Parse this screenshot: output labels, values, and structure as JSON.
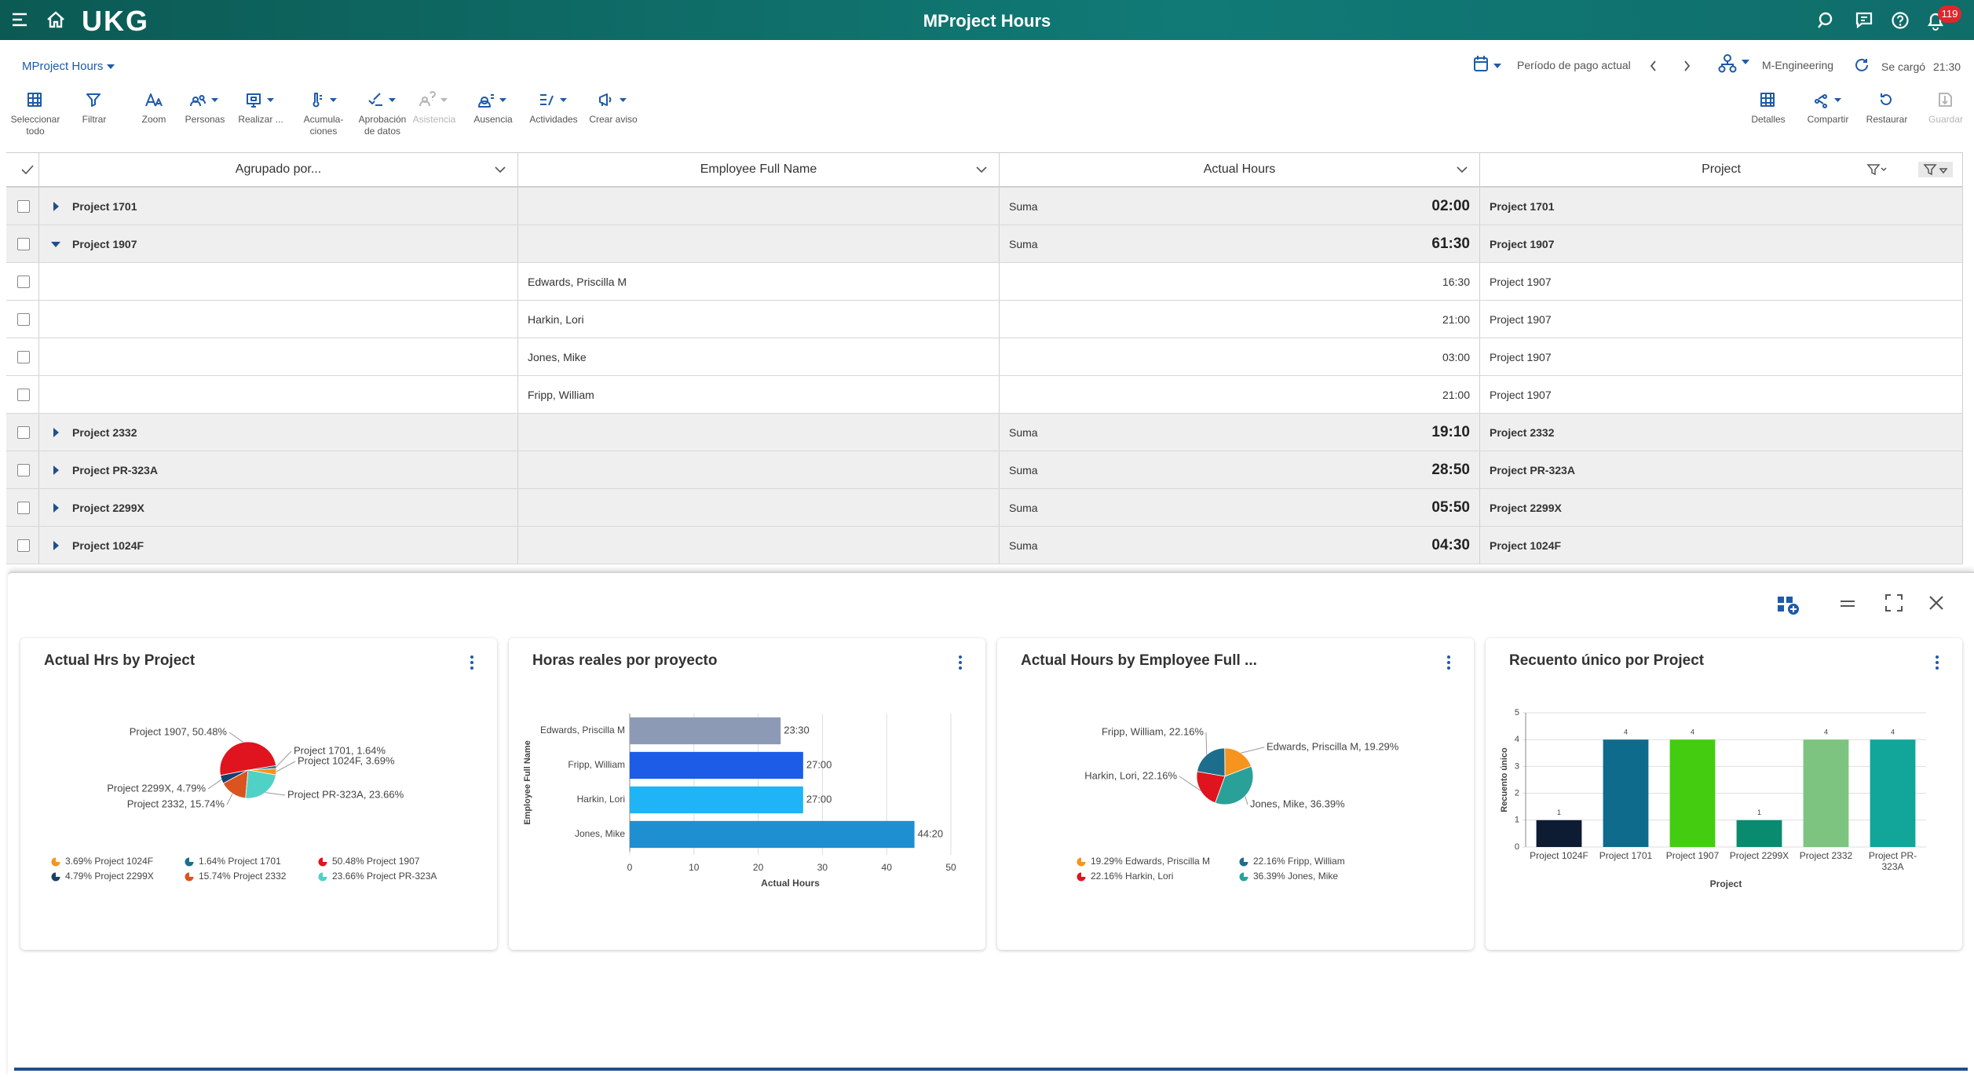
{
  "header": {
    "logo": "UKG",
    "title": "MProject Hours",
    "notification_count": "119"
  },
  "toolbar": {
    "view": "MProject Hours",
    "period": "Período de pago actual",
    "location": "M-Engineering",
    "loaded_label": "Se cargó",
    "loaded_time": "21:30",
    "actions": [
      {
        "label": "Seleccionar todo",
        "disabled": false
      },
      {
        "label": "Filtrar",
        "disabled": false
      },
      {
        "label": "Zoom",
        "disabled": false
      },
      {
        "label": "Personas",
        "disabled": false
      },
      {
        "label": "Realizar ...",
        "disabled": false
      },
      {
        "label": "Acumula-ciones",
        "disabled": false
      },
      {
        "label": "Aprobación de datos",
        "disabled": false
      },
      {
        "label": "Asistencia",
        "disabled": true
      },
      {
        "label": "Ausencia",
        "disabled": false
      },
      {
        "label": "Actividades",
        "disabled": false
      },
      {
        "label": "Crear aviso",
        "disabled": false
      }
    ],
    "right_actions": [
      {
        "label": "Detalles",
        "disabled": false
      },
      {
        "label": "Compartir",
        "disabled": false
      },
      {
        "label": "Restaurar",
        "disabled": false
      },
      {
        "label": "Guardar",
        "disabled": true
      }
    ]
  },
  "table": {
    "columns": [
      "Agrupado por...",
      "Employee Full Name",
      "Actual Hours",
      "Project"
    ],
    "rows": [
      {
        "group": "Project 1701",
        "expanded": false,
        "aggregate": "Suma",
        "hours": "02:00",
        "project": "Project 1701"
      },
      {
        "group": "Project 1907",
        "expanded": true,
        "aggregate": "Suma",
        "hours": "61:30",
        "project": "Project 1907"
      },
      {
        "employee": "Edwards, Priscilla M",
        "hours": "16:30",
        "project": "Project 1907"
      },
      {
        "employee": "Harkin, Lori",
        "hours": "21:00",
        "project": "Project 1907"
      },
      {
        "employee": "Jones, Mike",
        "hours": "03:00",
        "project": "Project 1907"
      },
      {
        "employee": "Fripp, William",
        "hours": "21:00",
        "project": "Project 1907"
      },
      {
        "group": "Project 2332",
        "expanded": false,
        "aggregate": "Suma",
        "hours": "19:10",
        "project": "Project 2332"
      },
      {
        "group": "Project PR-323A",
        "expanded": false,
        "aggregate": "Suma",
        "hours": "28:50",
        "project": "Project PR-323A"
      },
      {
        "group": "Project 2299X",
        "expanded": false,
        "aggregate": "Suma",
        "hours": "05:50",
        "project": "Project 2299X"
      },
      {
        "group": "Project 1024F",
        "expanded": false,
        "aggregate": "Suma",
        "hours": "04:30",
        "project": "Project 1024F"
      }
    ]
  },
  "chart_data": [
    {
      "type": "pie",
      "title": "Actual Hrs by Project",
      "categories": [
        "Project 1024F",
        "Project 1701",
        "Project 1907",
        "Project 2299X",
        "Project 2332",
        "Project PR-323A"
      ],
      "values": [
        3.69,
        1.64,
        50.48,
        4.79,
        15.74,
        23.66
      ],
      "value_labels": [
        "Project 1024F, 3.69%",
        "Project 1701, 1.64%",
        "Project 1907, 50.48%",
        "Project 2299X, 4.79%",
        "Project 2332, 15.74%",
        "Project PR-323A, 23.66%"
      ],
      "legend_labels": [
        "3.69% Project 1024F",
        "1.64% Project 1701",
        "50.48% Project 1907",
        "4.79% Project 2299X",
        "15.74% Project 2332",
        "23.66% Project PR-323A"
      ],
      "colors": [
        "#f7941d",
        "#1c6e8c",
        "#e0141e",
        "#163f6b",
        "#d9541e",
        "#4fd1c5"
      ]
    },
    {
      "type": "bar",
      "orientation": "horizontal",
      "title": "Horas reales por proyecto",
      "x_label": "Actual Hours",
      "y_label": "Employee Full Name",
      "categories": [
        "Edwards, Priscilla M",
        "Fripp, William",
        "Harkin, Lori",
        "Jones, Mike"
      ],
      "values": [
        23.5,
        27,
        27,
        44.33
      ],
      "value_labels": [
        "23:30",
        "27:00",
        "27:00",
        "44:20"
      ],
      "colors": [
        "#8c9ab5",
        "#1c5ce6",
        "#1fb4f5",
        "#1e8fd1"
      ],
      "xlim": [
        0,
        50
      ],
      "xticks": [
        0,
        10,
        20,
        30,
        40,
        50
      ],
      "grid": true
    },
    {
      "type": "pie",
      "title": "Actual Hours by Employee Full ...",
      "categories": [
        "Edwards, Priscilla M",
        "Fripp, William",
        "Harkin, Lori",
        "Jones, Mike"
      ],
      "values": [
        19.29,
        22.16,
        22.16,
        36.39
      ],
      "value_labels": [
        "Edwards, Priscilla M, 19.29%",
        "Fripp, William, 22.16%",
        "Harkin, Lori, 22.16%",
        "Jones, Mike, 36.39%"
      ],
      "legend_labels": [
        "19.29% Edwards, Priscilla M",
        "22.16% Fripp, William",
        "22.16% Harkin, Lori",
        "36.39% Jones, Mike"
      ],
      "colors": [
        "#f7941d",
        "#1c6e8c",
        "#e0141e",
        "#2aa198"
      ]
    },
    {
      "type": "bar",
      "orientation": "vertical",
      "title": "Recuento único por Project",
      "x_label": "Project",
      "y_label": "Recuento único",
      "categories": [
        "Project 1024F",
        "Project 1701",
        "Project 1907",
        "Project 2299X",
        "Project 2332",
        "Project PR-323A"
      ],
      "values": [
        1,
        4,
        4,
        1,
        4,
        4
      ],
      "colors": [
        "#0d1b33",
        "#0e6b8c",
        "#44cc11",
        "#0a8a6e",
        "#7cc47f",
        "#12a59a"
      ],
      "ylim": [
        0,
        5
      ],
      "yticks": [
        0,
        1,
        2,
        3,
        4,
        5
      ],
      "grid": true
    }
  ]
}
